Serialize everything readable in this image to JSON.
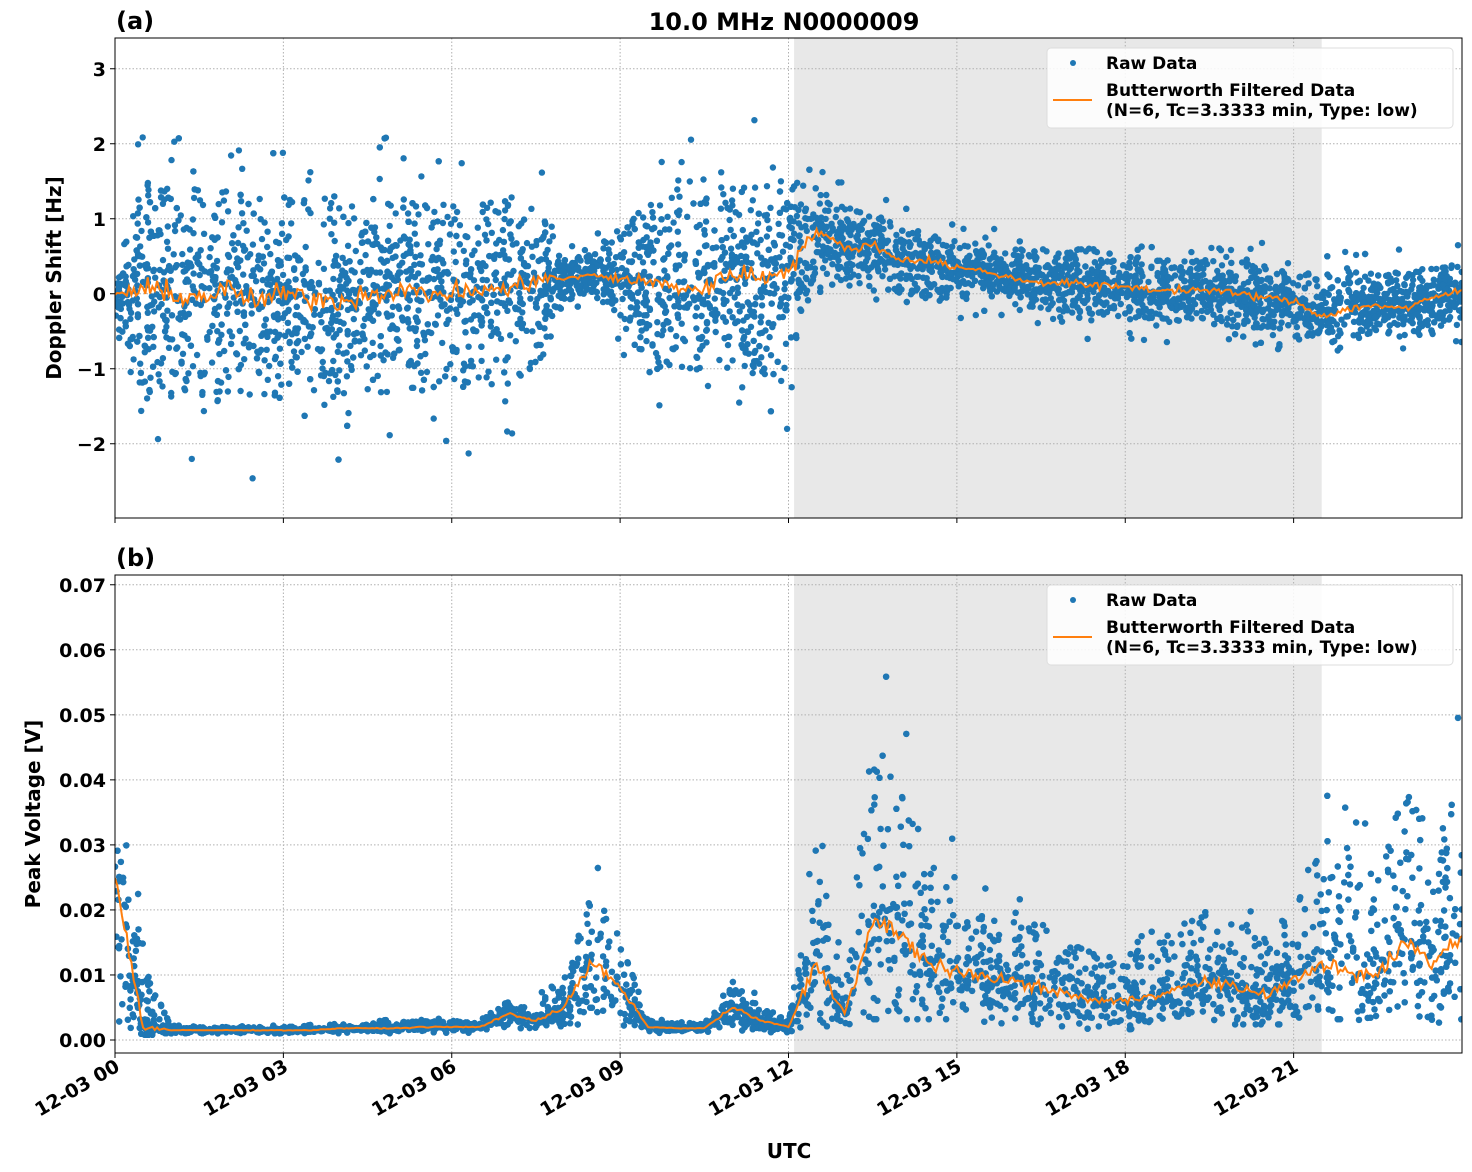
{
  "title": "10.0 MHz N0000009",
  "xlabel": "UTC",
  "x_tick_labels": [
    "12-03 00",
    "12-03 03",
    "12-03 06",
    "12-03 09",
    "12-03 12",
    "12-03 15",
    "12-03 18",
    "12-03 21"
  ],
  "x_tick_hours": [
    0,
    3,
    6,
    9,
    12,
    15,
    18,
    21
  ],
  "colors": {
    "raw": "#1f77b4",
    "filtered": "#ff7f0e",
    "shade": "#e8e8e8"
  },
  "legend": {
    "raw": "Raw Data",
    "filtered_line1": "Butterworth Filtered Data",
    "filtered_line2": "(N=6, Tc=3.3333 min, Type: low)",
    "placement": "top-right"
  },
  "chart_data": [
    {
      "type": "scatter",
      "panel_label": "(a)",
      "ylabel": "Doppler Shift [Hz]",
      "xlim_hours": [
        0,
        24
      ],
      "ylim": [
        -2.99,
        3.41
      ],
      "y_ticks": [
        -2,
        -1,
        0,
        1,
        2,
        3
      ],
      "y_tick_labels": [
        "−2",
        "−1",
        "0",
        "1",
        "2",
        "3"
      ],
      "grid": true,
      "shaded_hours": [
        12.1,
        21.5
      ],
      "time_step_hours": 0.5,
      "filtered": [
        0.0,
        0.05,
        0.0,
        -0.05,
        0.05,
        -0.1,
        0.0,
        -0.05,
        -0.1,
        0.0,
        0.05,
        0.0,
        0.0,
        0.05,
        0.05,
        0.2,
        0.2,
        0.25,
        0.2,
        0.15,
        0.1,
        0.05,
        0.3,
        0.2,
        0.35,
        0.85,
        0.6,
        0.65,
        0.45,
        0.45,
        0.35,
        0.3,
        0.2,
        0.15,
        0.15,
        0.1,
        0.1,
        0.05,
        0.05,
        0.05,
        0.0,
        -0.05,
        -0.1,
        -0.3,
        -0.2,
        -0.15,
        -0.2,
        -0.05,
        0.05
      ],
      "raw_upper": [
        0.3,
        1.5,
        1.5,
        1.4,
        1.4,
        1.3,
        1.3,
        1.3,
        1.3,
        1.3,
        1.4,
        1.4,
        1.3,
        1.2,
        1.3,
        1.2,
        0.5,
        0.5,
        0.9,
        1.2,
        1.3,
        1.3,
        1.4,
        1.5,
        1.6,
        1.4,
        1.2,
        1.1,
        0.9,
        0.8,
        0.7,
        0.7,
        0.6,
        0.6,
        0.6,
        0.6,
        0.5,
        0.5,
        0.45,
        0.45,
        0.45,
        0.4,
        0.35,
        0.2,
        0.3,
        0.3,
        0.3,
        0.35,
        0.4
      ],
      "raw_lower": [
        -0.3,
        -1.4,
        -1.4,
        -1.4,
        -1.5,
        -1.5,
        -1.4,
        -1.4,
        -1.4,
        -1.4,
        -1.3,
        -1.3,
        -1.3,
        -1.3,
        -1.2,
        -1.1,
        -0.1,
        0.0,
        -0.4,
        -1.0,
        -1.1,
        -1.1,
        -1.0,
        -1.1,
        -1.2,
        0.0,
        0.1,
        0.1,
        0.0,
        -0.1,
        -0.1,
        0.0,
        -0.15,
        -0.2,
        -0.3,
        -0.4,
        -0.35,
        -0.35,
        -0.4,
        -0.4,
        -0.45,
        -0.5,
        -0.6,
        -0.7,
        -0.6,
        -0.5,
        -0.6,
        -0.5,
        -0.4
      ]
    },
    {
      "type": "scatter",
      "panel_label": "(b)",
      "ylabel": "Peak Voltage [V]",
      "xlim_hours": [
        0,
        24
      ],
      "ylim": [
        -0.002,
        0.0715
      ],
      "y_ticks": [
        0,
        0.01,
        0.02,
        0.03,
        0.04,
        0.05,
        0.06,
        0.07
      ],
      "y_tick_labels": [
        "0.00",
        "0.01",
        "0.02",
        "0.03",
        "0.04",
        "0.05",
        "0.06",
        "0.07"
      ],
      "grid": true,
      "shaded_hours": [
        12.1,
        21.5
      ],
      "time_step_hours": 0.5,
      "filtered": [
        0.025,
        0.002,
        0.0015,
        0.0015,
        0.0015,
        0.0015,
        0.0015,
        0.0015,
        0.0018,
        0.0018,
        0.0018,
        0.002,
        0.002,
        0.002,
        0.004,
        0.003,
        0.005,
        0.012,
        0.008,
        0.002,
        0.0018,
        0.0018,
        0.005,
        0.003,
        0.002,
        0.012,
        0.004,
        0.018,
        0.016,
        0.012,
        0.01,
        0.01,
        0.009,
        0.008,
        0.007,
        0.006,
        0.006,
        0.007,
        0.008,
        0.009,
        0.008,
        0.007,
        0.009,
        0.012,
        0.01,
        0.01,
        0.015,
        0.012,
        0.016
      ],
      "raw_upper": [
        0.045,
        0.012,
        0.002,
        0.002,
        0.002,
        0.002,
        0.002,
        0.0022,
        0.0025,
        0.0025,
        0.0028,
        0.003,
        0.003,
        0.003,
        0.006,
        0.005,
        0.01,
        0.022,
        0.016,
        0.003,
        0.0025,
        0.0025,
        0.009,
        0.005,
        0.003,
        0.03,
        0.008,
        0.05,
        0.04,
        0.028,
        0.025,
        0.022,
        0.02,
        0.018,
        0.015,
        0.013,
        0.013,
        0.015,
        0.018,
        0.02,
        0.018,
        0.016,
        0.022,
        0.03,
        0.028,
        0.026,
        0.04,
        0.03,
        0.04
      ],
      "raw_lower": [
        0.004,
        0.001,
        0.001,
        0.001,
        0.001,
        0.001,
        0.001,
        0.0012,
        0.0013,
        0.0013,
        0.0013,
        0.0014,
        0.0014,
        0.0014,
        0.0018,
        0.0016,
        0.002,
        0.004,
        0.003,
        0.0014,
        0.0013,
        0.0013,
        0.002,
        0.0015,
        0.0015,
        0.003,
        0.002,
        0.004,
        0.004,
        0.004,
        0.004,
        0.0035,
        0.003,
        0.003,
        0.0025,
        0.002,
        0.002,
        0.0025,
        0.003,
        0.003,
        0.003,
        0.003,
        0.003,
        0.004,
        0.004,
        0.003,
        0.004,
        0.003,
        0.004
      ]
    }
  ]
}
